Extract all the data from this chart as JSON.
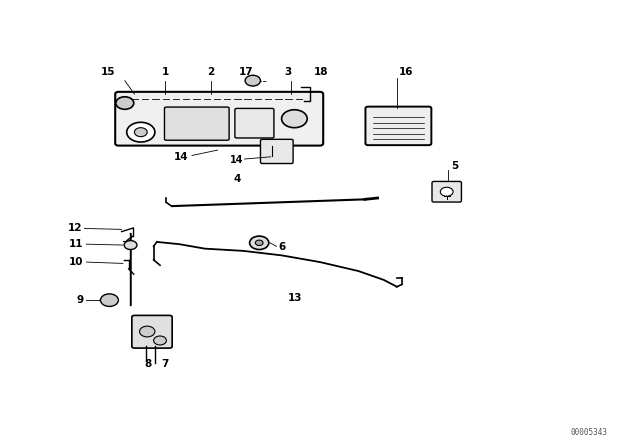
{
  "bg_color": "#ffffff",
  "line_color": "#000000",
  "fig_width": 6.4,
  "fig_height": 4.48,
  "dpi": 100,
  "watermark": "00005343"
}
